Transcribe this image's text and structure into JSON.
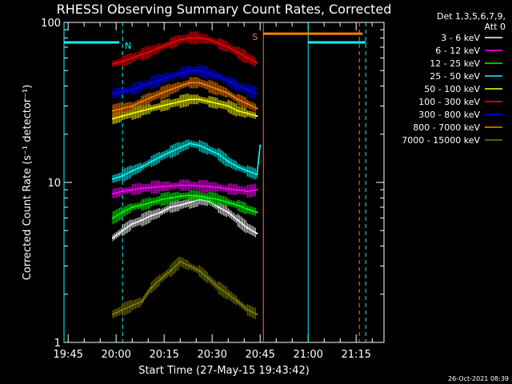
{
  "chart_data": {
    "type": "line",
    "title": "RHESSI Observing Summary Count Rates, Corrected",
    "xlabel": "Start Time (27-May-15 19:43:42)",
    "ylabel": "Corrected Count Rate (s⁻¹ detector⁻¹)",
    "yscale": "log",
    "ylim": [
      1,
      100
    ],
    "xlim": [
      "19:43:42",
      "21:23:42"
    ],
    "x_ticks": [
      "19:45",
      "20:00",
      "20:15",
      "20:30",
      "20:45",
      "21:00",
      "21:15"
    ],
    "y_ticks": [
      "1",
      "10",
      "100"
    ],
    "grid": false,
    "legend_position": "top-right",
    "legend_header": [
      "Det 1,3,5,6,7,9,",
      "Att 0"
    ],
    "series": [
      {
        "name": "3 - 6 keV",
        "color": "#ffffff",
        "visible_text_color": "#000000",
        "x": [
          "19:59",
          "20:02",
          "20:05",
          "20:08",
          "20:11",
          "20:14",
          "20:17",
          "20:20",
          "20:23",
          "20:26",
          "20:29",
          "20:32",
          "20:35",
          "20:38",
          "20:41",
          "20:44"
        ],
        "values": [
          4.5,
          5.0,
          5.5,
          5.8,
          6.2,
          6.5,
          7.0,
          7.2,
          7.5,
          7.8,
          7.6,
          7.0,
          6.5,
          5.8,
          5.2,
          4.8
        ]
      },
      {
        "name": "6 - 12 keV",
        "color": "#ff00ff",
        "x": [
          "19:59",
          "20:02",
          "20:05",
          "20:08",
          "20:11",
          "20:14",
          "20:17",
          "20:20",
          "20:23",
          "20:26",
          "20:29",
          "20:32",
          "20:35",
          "20:38",
          "20:41",
          "20:44"
        ],
        "values": [
          8.5,
          8.8,
          9.0,
          9.2,
          9.3,
          9.4,
          9.5,
          9.6,
          9.6,
          9.5,
          9.4,
          9.3,
          9.1,
          9.0,
          8.8,
          9.0
        ]
      },
      {
        "name": "12 - 25 keV",
        "color": "#00ff00",
        "x": [
          "19:59",
          "20:02",
          "20:05",
          "20:08",
          "20:11",
          "20:14",
          "20:17",
          "20:20",
          "20:23",
          "20:26",
          "20:29",
          "20:32",
          "20:35",
          "20:38",
          "20:41",
          "20:44"
        ],
        "values": [
          6.0,
          6.5,
          7.0,
          7.2,
          7.5,
          7.8,
          8.0,
          8.2,
          8.3,
          8.2,
          8.0,
          7.8,
          7.5,
          7.2,
          6.8,
          6.5
        ]
      },
      {
        "name": "25 - 50 keV",
        "color": "#00ffff",
        "x": [
          "19:59",
          "20:02",
          "20:05",
          "20:08",
          "20:11",
          "20:14",
          "20:17",
          "20:20",
          "20:23",
          "20:26",
          "20:29",
          "20:32",
          "20:35",
          "20:38",
          "20:41",
          "20:44",
          "20:45"
        ],
        "values": [
          10.5,
          11.0,
          11.8,
          12.5,
          13.5,
          14.5,
          15.5,
          16.5,
          17.5,
          17.0,
          16.0,
          15.0,
          13.5,
          12.5,
          11.8,
          11.2,
          17.0
        ]
      },
      {
        "name": "50 - 100 keV",
        "color": "#ffff00",
        "x": [
          "19:59",
          "20:02",
          "20:05",
          "20:08",
          "20:11",
          "20:14",
          "20:17",
          "20:20",
          "20:23",
          "20:26",
          "20:29",
          "20:32",
          "20:35",
          "20:38",
          "20:41",
          "20:44"
        ],
        "values": [
          25,
          26,
          27,
          28,
          29,
          30,
          31,
          32,
          33,
          33,
          32,
          31,
          30,
          28,
          27,
          26
        ]
      },
      {
        "name": "100 - 300 keV",
        "color": "#ff0000",
        "x": [
          "19:59",
          "20:02",
          "20:05",
          "20:08",
          "20:11",
          "20:14",
          "20:17",
          "20:20",
          "20:23",
          "20:26",
          "20:29",
          "20:32",
          "20:35",
          "20:38",
          "20:41",
          "20:44"
        ],
        "values": [
          55,
          57,
          60,
          63,
          66,
          70,
          74,
          78,
          80,
          80,
          78,
          74,
          70,
          65,
          60,
          56
        ]
      },
      {
        "name": "300 - 800 keV",
        "color": "#0000ff",
        "x": [
          "19:59",
          "20:02",
          "20:05",
          "20:08",
          "20:11",
          "20:14",
          "20:17",
          "20:20",
          "20:23",
          "20:26",
          "20:29",
          "20:32",
          "20:35",
          "20:38",
          "20:41",
          "20:44"
        ],
        "values": [
          36,
          37,
          38,
          40,
          42,
          44,
          46,
          48,
          50,
          50,
          48,
          46,
          43,
          40,
          38,
          36
        ]
      },
      {
        "name": "800 - 7000 keV",
        "color": "#ff8000",
        "x": [
          "19:59",
          "20:02",
          "20:05",
          "20:08",
          "20:11",
          "20:14",
          "20:17",
          "20:20",
          "20:23",
          "20:26",
          "20:29",
          "20:32",
          "20:35",
          "20:38",
          "20:41",
          "20:44"
        ],
        "values": [
          28,
          29,
          30,
          32,
          34,
          36,
          38,
          40,
          42,
          42,
          40,
          38,
          36,
          33,
          31,
          29
        ]
      },
      {
        "name": "7000 - 15000 keV",
        "color": "#808000",
        "x": [
          "19:59",
          "20:02",
          "20:05",
          "20:08",
          "20:11",
          "20:14",
          "20:17",
          "20:20",
          "20:23",
          "20:26",
          "20:29",
          "20:32",
          "20:35",
          "20:38",
          "20:41",
          "20:44"
        ],
        "values": [
          1.5,
          1.6,
          1.7,
          1.8,
          2.2,
          2.5,
          2.8,
          3.2,
          3.0,
          2.8,
          2.5,
          2.2,
          2.0,
          1.8,
          1.6,
          1.5
        ]
      }
    ],
    "flags": [
      {
        "label": "N",
        "color": "#00ffff",
        "value": 75,
        "x_start": "19:43:42",
        "x_end": "20:01"
      },
      {
        "label": "S",
        "color": "#ff8000",
        "value": 85,
        "x_start": "20:46",
        "x_end": "21:17"
      },
      {
        "label": "",
        "color": "#00ffff",
        "value": 75,
        "x_start": "21:00",
        "x_end": "21:18"
      }
    ],
    "vlines": [
      {
        "x": "19:43:42",
        "color": "#00ffff",
        "style": "solid"
      },
      {
        "x": "20:02",
        "color": "#00ffff",
        "style": "dashed"
      },
      {
        "x": "20:46",
        "color": "#ff8000",
        "style": "solid"
      },
      {
        "x": "21:00",
        "color": "#00ffff",
        "style": "solid"
      },
      {
        "x": "21:16",
        "color": "#ff8000",
        "style": "dashed"
      },
      {
        "x": "21:18",
        "color": "#00ffff",
        "style": "dashed"
      }
    ]
  },
  "footer": {
    "timestamp": "26-Oct-2021 08:39"
  }
}
